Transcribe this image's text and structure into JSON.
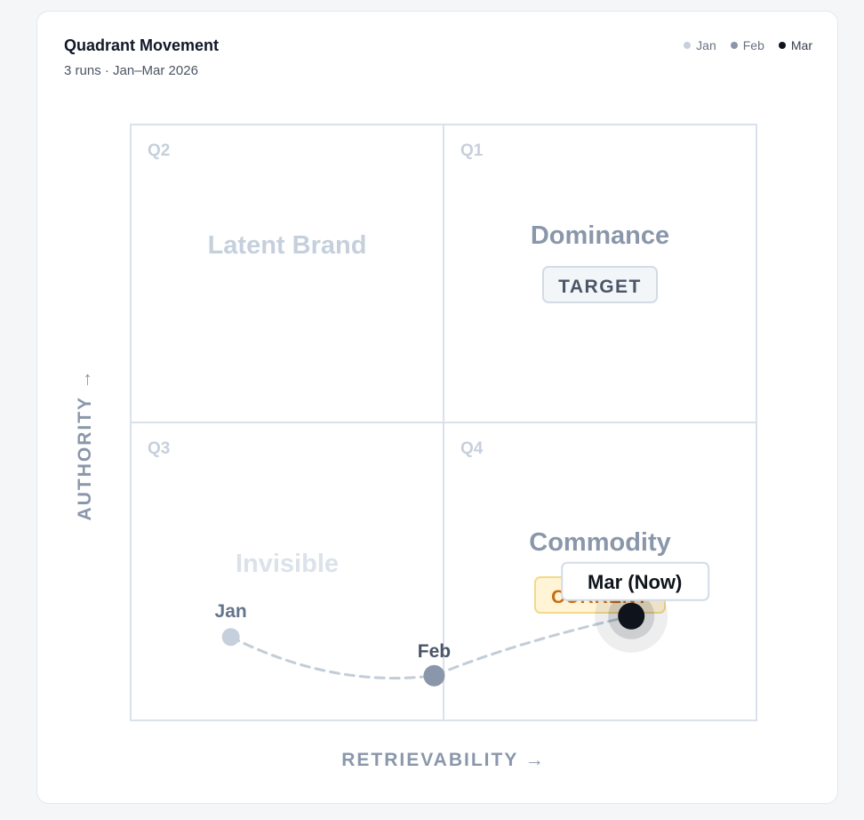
{
  "card": {
    "title": "Quadrant Movement",
    "subtitle": "3 runs · Jan–Mar 2026"
  },
  "legend": [
    {
      "label": "Jan",
      "color": "#c6d0dc"
    },
    {
      "label": "Feb",
      "color": "#8a97aa"
    },
    {
      "label": "Mar",
      "color": "#0f141c"
    }
  ],
  "chart_data": {
    "type": "scatter",
    "xlabel": "RETRIEVABILITY →",
    "ylabel": "AUTHORITY →",
    "xlim": [
      0,
      100
    ],
    "ylim": [
      0,
      100
    ],
    "grid": true,
    "quadrants": [
      {
        "id": "Q2",
        "name": "Latent Brand",
        "position": "top-left",
        "badge": ""
      },
      {
        "id": "Q1",
        "name": "Dominance",
        "position": "top-right",
        "badge": "TARGET"
      },
      {
        "id": "Q3",
        "name": "Invisible",
        "position": "bottom-left",
        "badge": ""
      },
      {
        "id": "Q4",
        "name": "Commodity",
        "position": "bottom-right",
        "badge": "CURRENT"
      }
    ],
    "series": [
      {
        "name": "Quadrant path",
        "points": [
          {
            "label": "Jan",
            "x": 16,
            "y": 14
          },
          {
            "label": "Feb",
            "x": 48.5,
            "y": 7.5
          },
          {
            "label": "Mar (Now)",
            "x": 80,
            "y": 17.5
          }
        ]
      }
    ],
    "colors": {
      "jan": "#c6d0dc",
      "feb": "#8a97aa",
      "mar": "#0f141c",
      "grid": "#d9e1ea",
      "current_badge_bg": "#fff4d6",
      "current_badge_border": "#f3d98b",
      "current_badge_text": "#c76d12"
    }
  }
}
